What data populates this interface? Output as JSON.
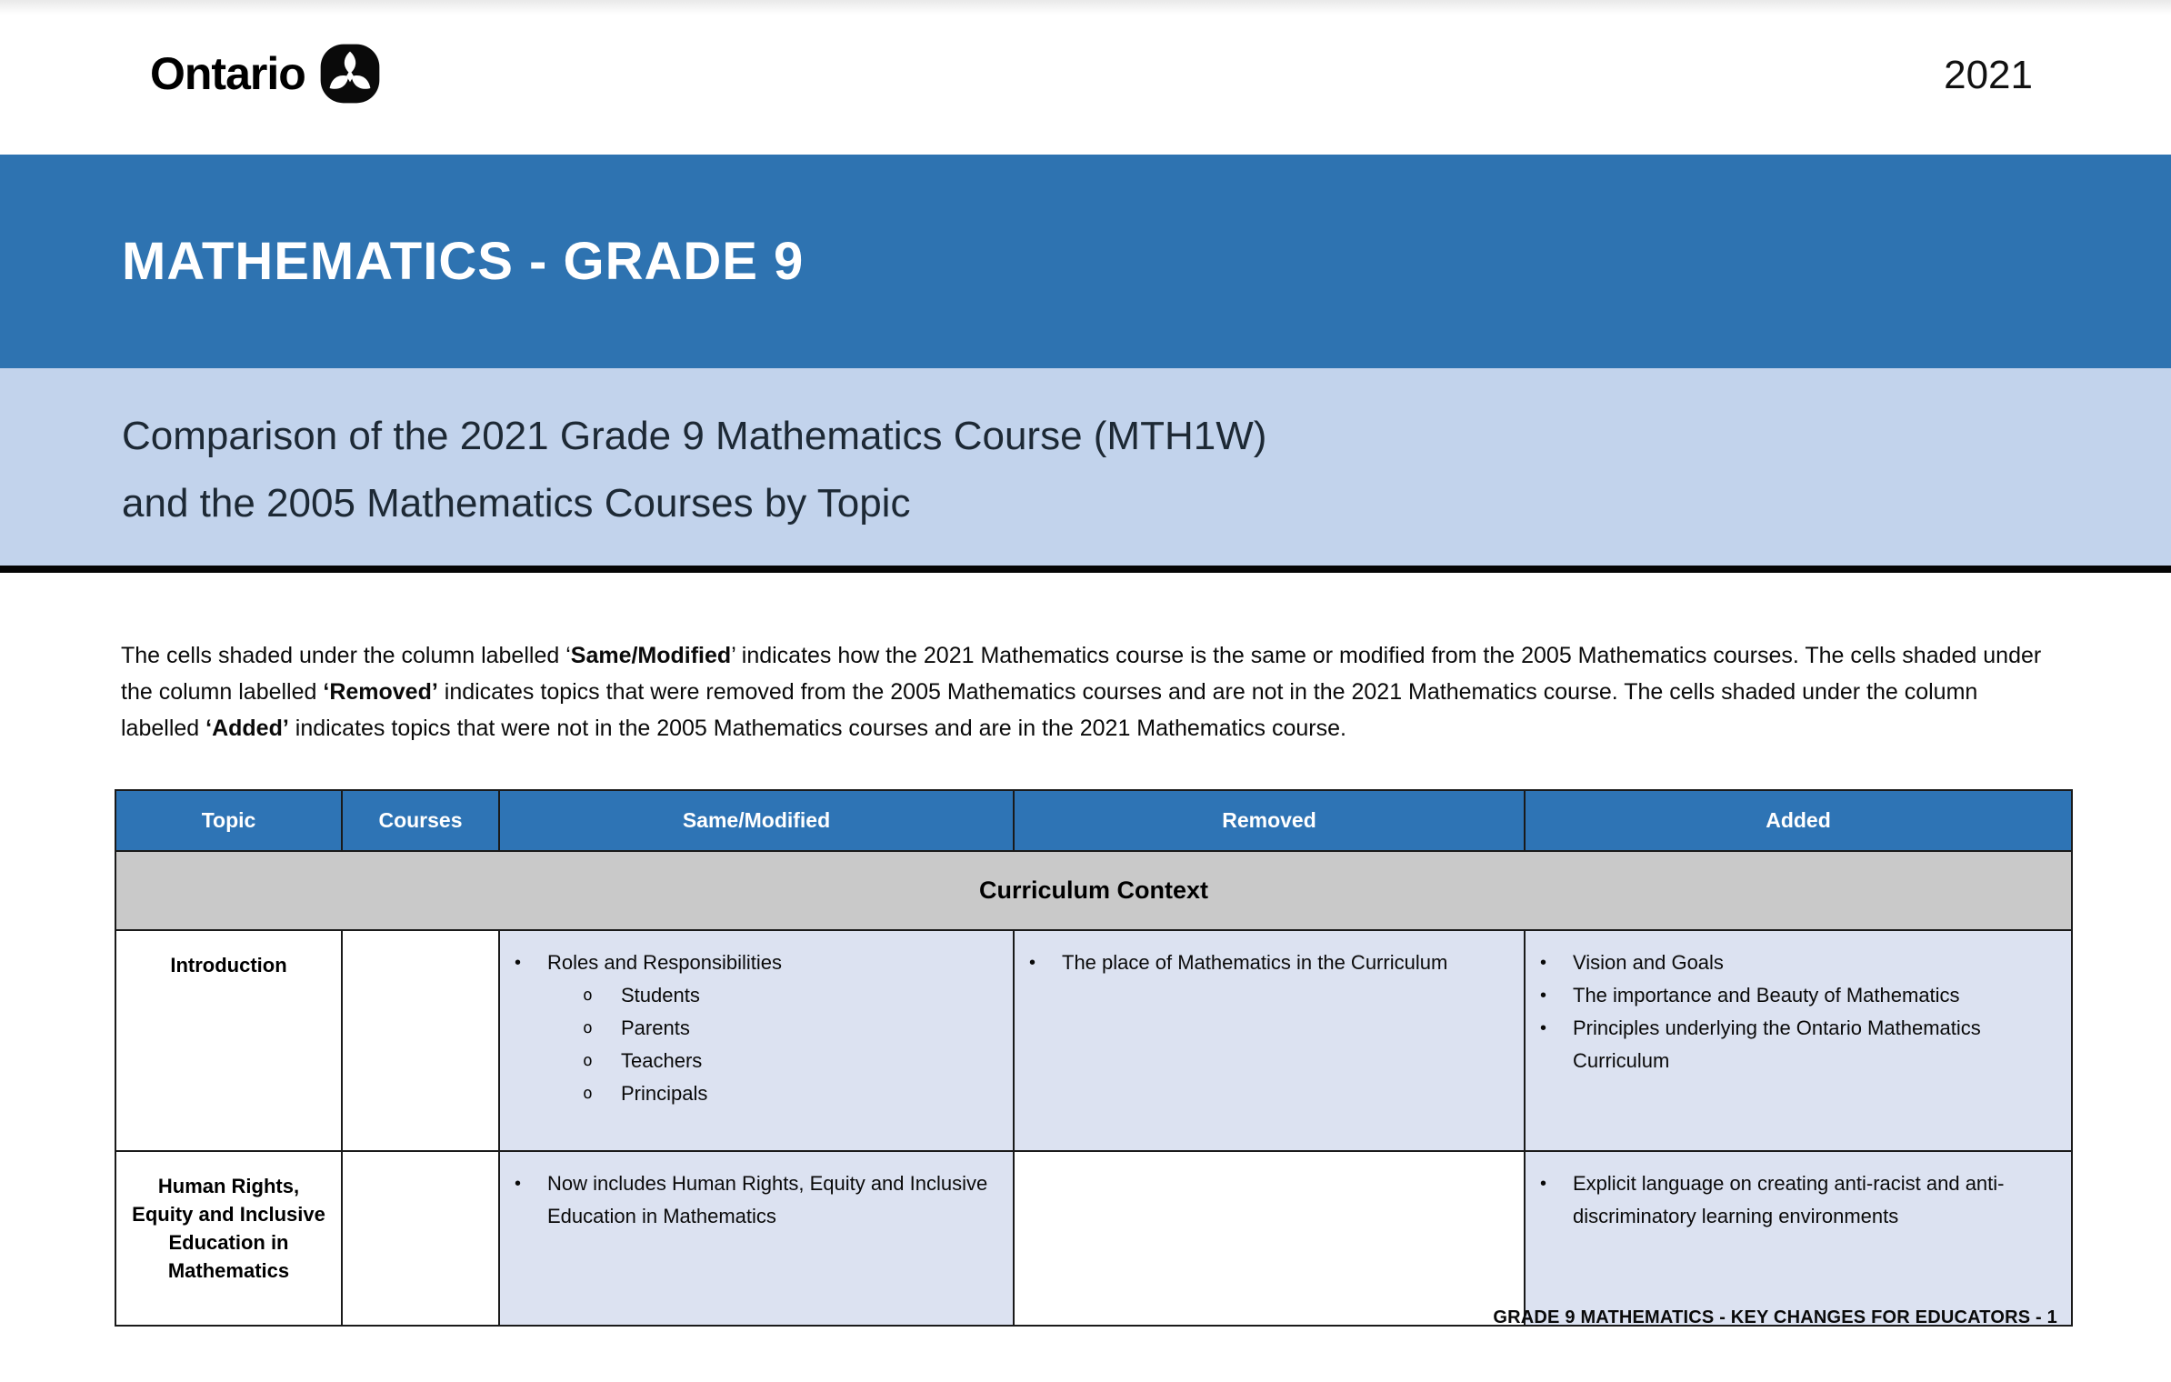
{
  "header": {
    "logo_text": "Ontario",
    "logo_icon": "trillium-icon",
    "year": "2021"
  },
  "banner": {
    "title": "MATHEMATICS - GRADE 9"
  },
  "subtitle": {
    "line1": "Comparison of the 2021 Grade 9 Mathematics Course (MTH1W)",
    "line2": "and the 2005 Mathematics Courses by Topic"
  },
  "intro": {
    "segments": [
      {
        "text": "The cells shaded under the column labelled ‘",
        "bold": false
      },
      {
        "text": "Same/Modified",
        "bold": true
      },
      {
        "text": "’ indicates how the 2021 Mathematics course is the same or modified from the 2005 Mathematics courses. The cells shaded under the column labelled ",
        "bold": false
      },
      {
        "text": "‘Removed’",
        "bold": true
      },
      {
        "text": " indicates topics that were removed from the 2005 Mathematics courses and are not in the 2021 Mathematics course. The cells shaded under the column labelled ",
        "bold": false
      },
      {
        "text": "‘Added’",
        "bold": true
      },
      {
        "text": " indicates topics that were not in the 2005 Mathematics courses and are in the 2021 Mathematics course.",
        "bold": false
      }
    ]
  },
  "table": {
    "columns": [
      "Topic",
      "Courses",
      "Same/Modified",
      "Removed",
      "Added"
    ],
    "section_header": "Curriculum Context",
    "rows": [
      {
        "topic": "Introduction",
        "courses": "",
        "cells": [
          {
            "key": "same-modified",
            "shaded": true,
            "items": [
              {
                "level": 1,
                "text": "Roles and Responsibilities"
              },
              {
                "level": 2,
                "text": "Students"
              },
              {
                "level": 2,
                "text": "Parents"
              },
              {
                "level": 2,
                "text": "Teachers"
              },
              {
                "level": 2,
                "text": "Principals"
              }
            ]
          },
          {
            "key": "removed",
            "shaded": true,
            "items": [
              {
                "level": 1,
                "text": "The place of Mathematics in the Curriculum"
              }
            ]
          },
          {
            "key": "added",
            "shaded": true,
            "items": [
              {
                "level": 1,
                "text": "Vision and Goals"
              },
              {
                "level": 1,
                "text": "The importance and Beauty of Mathematics"
              },
              {
                "level": 1,
                "text": "Principles underlying the Ontario Mathematics Curriculum"
              }
            ]
          }
        ]
      },
      {
        "topic": "Human Rights, Equity and Inclusive Education in Mathematics",
        "courses": "",
        "cells": [
          {
            "key": "same-modified",
            "shaded": true,
            "items": [
              {
                "level": 1,
                "text": "Now includes Human Rights, Equity and Inclusive Education in Mathematics"
              }
            ]
          },
          {
            "key": "removed",
            "shaded": false,
            "items": []
          },
          {
            "key": "added",
            "shaded": true,
            "items": [
              {
                "level": 1,
                "text": "Explicit language on creating anti-racist and anti-discriminatory learning environments"
              }
            ]
          }
        ]
      }
    ]
  },
  "footer": {
    "text": "GRADE 9 MATHEMATICS - KEY CHANGES FOR EDUCATORS - 1"
  },
  "colors": {
    "banner_blue": "#2E73B1",
    "table_header_blue": "#2E74B5",
    "subtitle_bg": "#C2D3EC",
    "cell_shade": "#DCE2F1",
    "section_gray": "#C9C9C9"
  }
}
